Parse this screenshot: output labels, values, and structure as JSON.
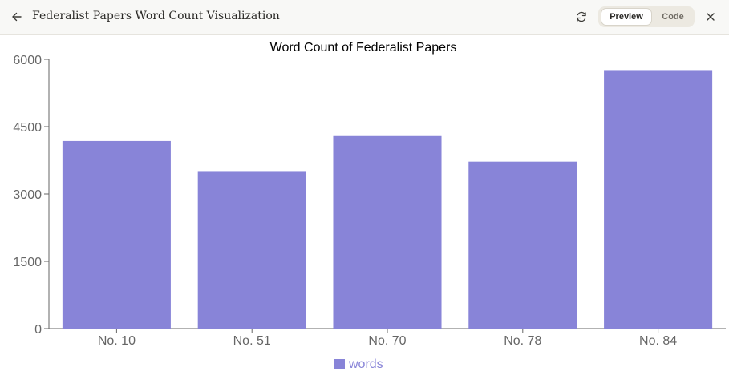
{
  "header": {
    "title": "Federalist Papers Word Count Visualization",
    "back_icon": "arrow-left-icon",
    "refresh_icon": "refresh-icon",
    "close_icon": "close-icon",
    "tabs": [
      {
        "label": "Preview",
        "active": true
      },
      {
        "label": "Code",
        "active": false
      }
    ]
  },
  "chart_data": {
    "type": "bar",
    "title": "Word Count of Federalist Papers",
    "categories": [
      "No. 10",
      "No. 51",
      "No. 70",
      "No. 78",
      "No. 84"
    ],
    "series": [
      {
        "name": "words",
        "values": [
          4180,
          3510,
          4290,
          3720,
          5760
        ],
        "color": "#8884d8"
      }
    ],
    "yticks": [
      0,
      1500,
      3000,
      4500,
      6000
    ],
    "ylim": [
      0,
      6000
    ],
    "grid": false,
    "legend": "bottom-center"
  }
}
